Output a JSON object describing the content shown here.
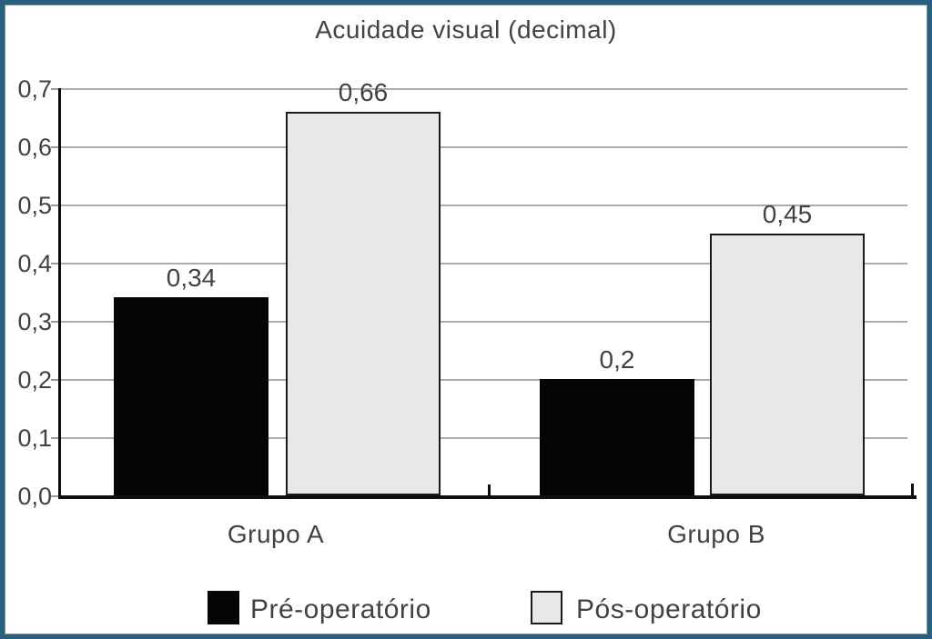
{
  "figure": {
    "border_color": "#2b5f7e",
    "background": "#ffffff",
    "text_color": "#3e4347"
  },
  "chart_data": {
    "type": "bar",
    "title": "Acuidade visual (decimal)",
    "categories": [
      "Grupo A",
      "Grupo B"
    ],
    "series": [
      {
        "name": "Pré-operatório",
        "fill": "#050505",
        "border": "#050505",
        "values": [
          0.34,
          0.2
        ],
        "value_labels": [
          "0,34",
          "0,2"
        ]
      },
      {
        "name": "Pós-operatório",
        "fill": "#e8e8e8",
        "border": "#1a1a1a",
        "values": [
          0.66,
          0.45
        ],
        "value_labels": [
          "0,66",
          "0,45"
        ]
      }
    ],
    "ylim": [
      0,
      0.7
    ],
    "ytick_labels": [
      "0,0",
      "0,1",
      "0,2",
      "0,3",
      "0,4",
      "0,5",
      "0,6",
      "0,7"
    ],
    "grid": true,
    "grid_color": "#ababab",
    "axis_color": "#0e0e0e",
    "legend_position": "bottom",
    "decimal_separator": ","
  }
}
